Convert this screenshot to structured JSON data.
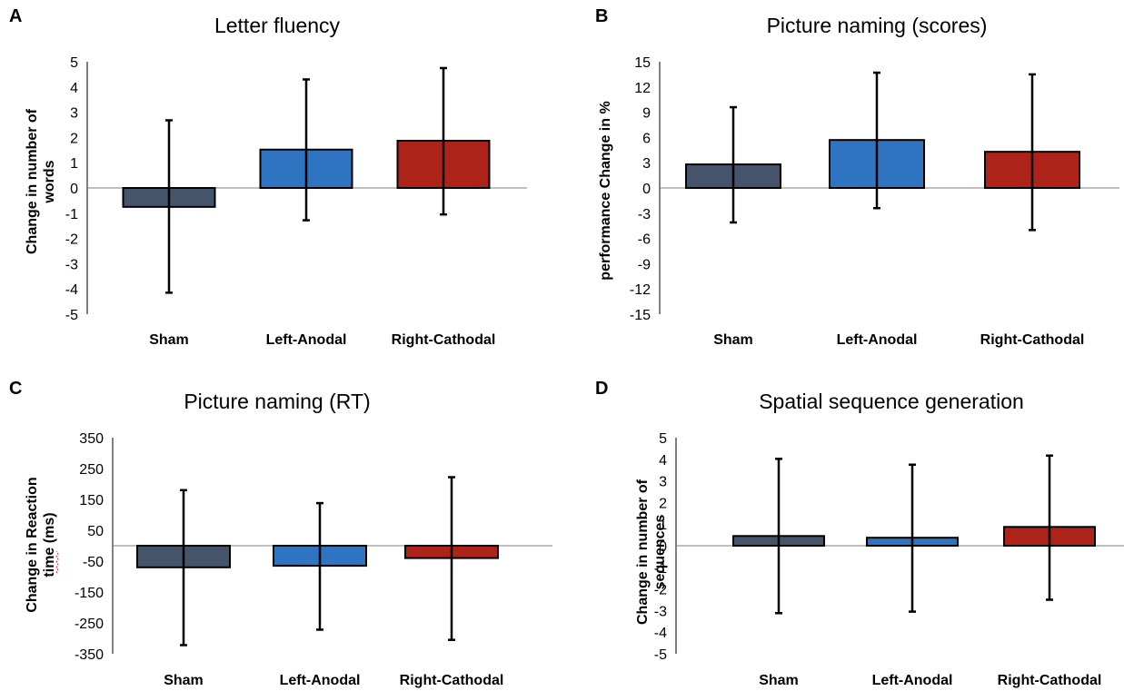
{
  "colors": {
    "sham": "#46546b",
    "left_anodal": "#2f74c0",
    "right_cathodal": "#ad2219"
  },
  "chart_data": [
    {
      "panel": "A",
      "type": "bar",
      "title": "Letter fluency",
      "ylabel_lines": [
        "Change in number of",
        "words"
      ],
      "categories": [
        "Sham",
        "Left-Anodal",
        "Right-Cathodal"
      ],
      "values": [
        -0.75,
        1.52,
        1.87
      ],
      "error_low": [
        -4.15,
        -1.28,
        -1.05
      ],
      "error_high": [
        2.68,
        4.3,
        4.75
      ],
      "ylim": [
        -5,
        5
      ],
      "yticks": [
        "5",
        "4",
        "3",
        "2",
        "1",
        "0",
        "-1",
        "-2",
        "-3",
        "-4",
        "-5"
      ],
      "colors": [
        "#46546b",
        "#2f74c0",
        "#ad2219"
      ]
    },
    {
      "panel": "B",
      "type": "bar",
      "title": "Picture naming (scores)",
      "ylabel_lines": [
        "performance Change in %"
      ],
      "categories": [
        "Sham",
        "Left-Anodal",
        "Right-Cathodal"
      ],
      "values": [
        2.8,
        5.7,
        4.3
      ],
      "error_low": [
        -4.1,
        -2.4,
        -5.0
      ],
      "error_high": [
        9.6,
        13.7,
        13.5
      ],
      "ylim": [
        -15,
        15
      ],
      "yticks": [
        "15",
        "12",
        "9",
        "6",
        "3",
        "0",
        "-3",
        "-6",
        "-9",
        "-12",
        "-15"
      ],
      "colors": [
        "#46546b",
        "#2f74c0",
        "#ad2219"
      ]
    },
    {
      "panel": "C",
      "type": "bar",
      "title": "Picture naming (RT)",
      "ylabel_lines": [
        "Change in Reaction",
        "time (ms)"
      ],
      "categories": [
        "Sham",
        "Left-Anodal",
        "Right-Cathodal"
      ],
      "values": [
        -70,
        -65,
        -40
      ],
      "error_low": [
        -322,
        -272,
        -305
      ],
      "error_high": [
        180,
        138,
        222
      ],
      "ylim": [
        -350,
        350
      ],
      "yticks": [
        "350",
        "250",
        "150",
        "50",
        "-50",
        "-150",
        "-250",
        "-350"
      ],
      "colors": [
        "#46546b",
        "#2f74c0",
        "#ad2219"
      ]
    },
    {
      "panel": "D",
      "type": "bar",
      "title": "Spatial sequence generation",
      "ylabel_lines": [
        "Change in number of",
        "sequences"
      ],
      "categories": [
        "Sham",
        "Left-Anodal",
        "Right-Cathodal"
      ],
      "values": [
        0.45,
        0.37,
        0.87
      ],
      "error_low": [
        -3.12,
        -3.05,
        -2.5
      ],
      "error_high": [
        4.02,
        3.75,
        4.17
      ],
      "ylim": [
        -5,
        5
      ],
      "yticks": [
        "5",
        "4",
        "3",
        "2",
        "1",
        "0",
        "-1",
        "-2",
        "-3",
        "-4",
        "-5"
      ],
      "colors": [
        "#46546b",
        "#2f74c0",
        "#ad2219"
      ]
    }
  ]
}
